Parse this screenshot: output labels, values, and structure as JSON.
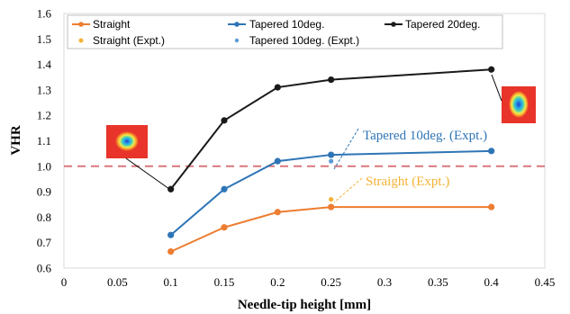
{
  "chart_data": {
    "type": "line",
    "xlabel": "Needle-tip height [mm]",
    "ylabel": "VHR",
    "xlim": [
      0,
      0.45
    ],
    "ylim": [
      0.6,
      1.6
    ],
    "xticks": [
      0,
      0.05,
      0.1,
      0.15,
      0.2,
      0.25,
      0.3,
      0.35,
      0.4,
      0.45
    ],
    "yticks": [
      0.6,
      0.7,
      0.8,
      0.9,
      1.0,
      1.1,
      1.2,
      1.3,
      1.4,
      1.5,
      1.6
    ],
    "xtick_labels": [
      "0",
      "0.05",
      "0.1",
      "0.15",
      "0.2",
      "0.25",
      "0.3",
      "0.35",
      "0.4",
      "0.45"
    ],
    "ytick_labels": [
      "0.6",
      "0.7",
      "0.8",
      "0.9",
      "1.0",
      "1.1",
      "1.2",
      "1.3",
      "1.4",
      "1.5",
      "1.6"
    ],
    "grid": false,
    "legend_position": "top",
    "reference_line": {
      "y": 1.0,
      "style": "dashed",
      "color": "#d9777a"
    },
    "series": [
      {
        "name": "Straight",
        "color": "#ed7d31",
        "kind": "line",
        "x": [
          0.1,
          0.15,
          0.2,
          0.25,
          0.4
        ],
        "y": [
          0.665,
          0.76,
          0.82,
          0.84,
          0.84
        ]
      },
      {
        "name": "Tapered 10deg.",
        "color": "#2e75b6",
        "kind": "line",
        "x": [
          0.1,
          0.15,
          0.2,
          0.25,
          0.4
        ],
        "y": [
          0.73,
          0.91,
          1.02,
          1.045,
          1.06
        ]
      },
      {
        "name": "Tapered 20deg.",
        "color": "#1a1a1a",
        "kind": "line",
        "x": [
          0.1,
          0.15,
          0.2,
          0.25,
          0.4
        ],
        "y": [
          0.91,
          1.18,
          1.31,
          1.34,
          1.38
        ]
      },
      {
        "name": "Straight (Expt.)",
        "color": "#f4b234",
        "kind": "point",
        "x": [
          0.25
        ],
        "y": [
          0.87
        ]
      },
      {
        "name": "Tapered 10deg. (Expt.)",
        "color": "#5b9bd5",
        "kind": "point",
        "x": [
          0.25
        ],
        "y": [
          1.02
        ]
      }
    ],
    "annotations": [
      {
        "text": "Tapered 10deg. (Expt.)",
        "color": "#2e75b6"
      },
      {
        "text": "Straight (Expt.)",
        "color": "#f4b234"
      }
    ]
  }
}
